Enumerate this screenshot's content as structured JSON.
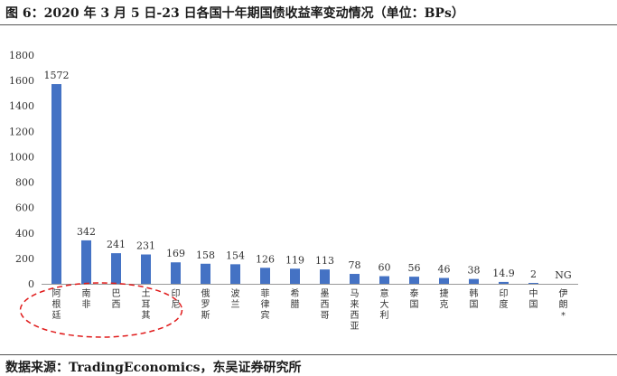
{
  "title": "图 6：2020 年 3 月 5 日-23 日各国十年期国债收益率变动情况（单位：BPs）",
  "source": "数据来源：TradingEconomics，东吴证券研究所",
  "colors": {
    "bar": "#4472C4",
    "highlight": "#e01b1b",
    "axis": "#999999"
  },
  "chart_data": {
    "type": "bar",
    "title": "",
    "xlabel": "",
    "ylabel": "",
    "ylim": [
      0,
      1800
    ],
    "yticks": [
      0,
      200,
      400,
      600,
      800,
      1000,
      1200,
      1400,
      1600,
      1800
    ],
    "grid": false,
    "categories": [
      "阿根廷",
      "南非",
      "巴西",
      "土耳其",
      "印尼",
      "俄罗斯",
      "波兰",
      "菲律宾",
      "希腊",
      "墨西哥",
      "马来西亚",
      "意大利",
      "泰国",
      "捷克",
      "韩国",
      "印度",
      "中国",
      "伊朗*"
    ],
    "values": [
      1572,
      342,
      241,
      231,
      169,
      158,
      154,
      126,
      119,
      113,
      78,
      60,
      56,
      46,
      38,
      14.9,
      2,
      null
    ],
    "data_labels": [
      "1572",
      "342",
      "241",
      "231",
      "169",
      "158",
      "154",
      "126",
      "119",
      "113",
      "78",
      "60",
      "56",
      "46",
      "38",
      "14.9",
      "2",
      "NG"
    ],
    "highlighted_categories": [
      "阿根廷",
      "南非",
      "巴西",
      "土耳其"
    ]
  }
}
